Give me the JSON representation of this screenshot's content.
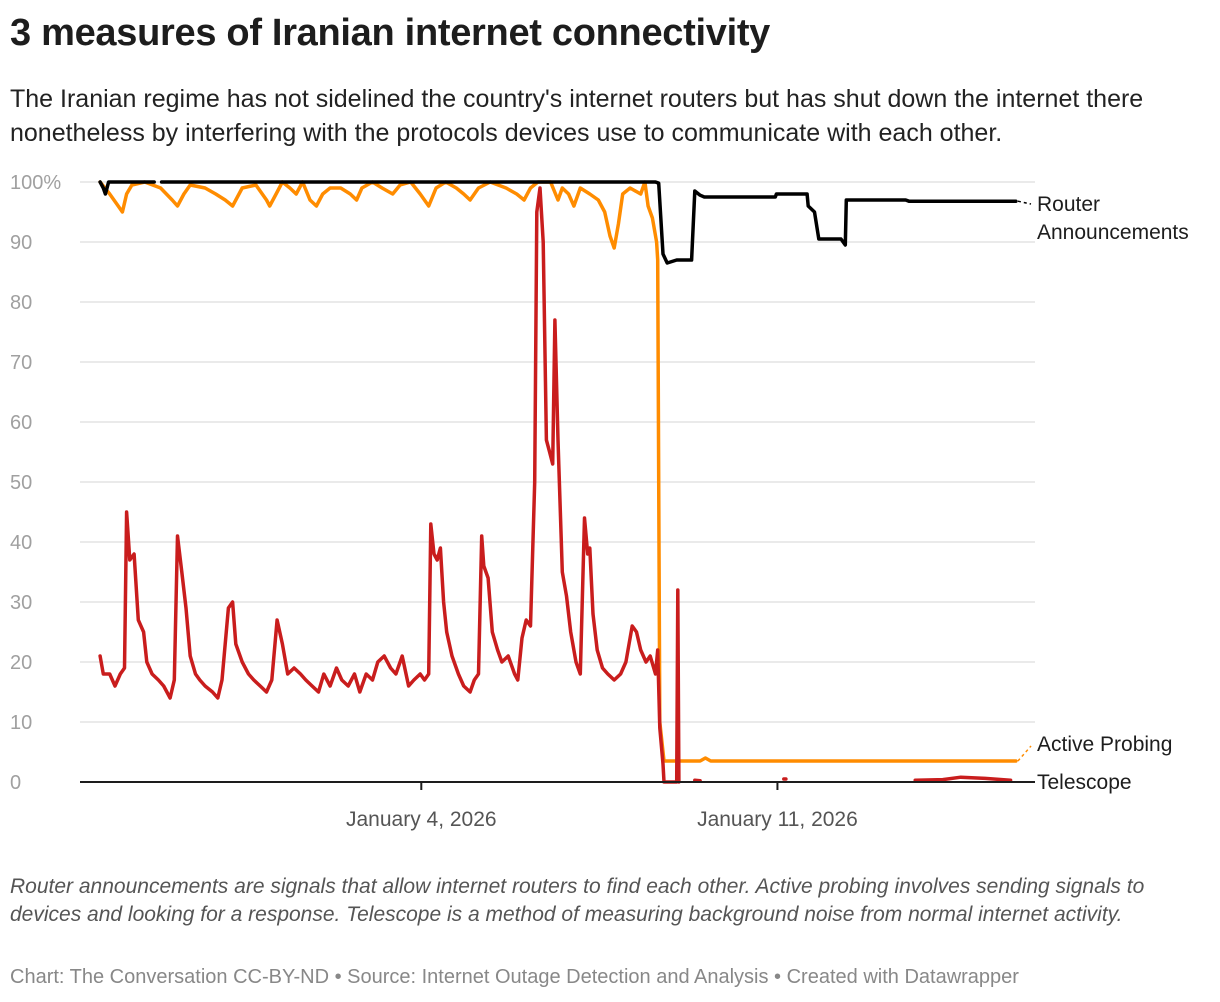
{
  "title": "3 measures of Iranian internet connectivity",
  "subtitle": "The Iranian regime has not sidelined the country's internet routers but has shut down the internet there nonetheless by interfering with the protocols devices use to communicate with each other.",
  "notes": "Router announcements are signals that allow internet routers to find each other. Active probing involves sending signals to devices and looking for a response. Telescope is a method of measuring background noise from normal internet activity.",
  "footer": "Chart: The Conversation CC-BY-ND • Source: Internet Outage Detection and Analysis • Created with Datawrapper",
  "chart_data": {
    "type": "line",
    "xlim": [
      "2025-12-28T07:00",
      "2026-01-16T01:30"
    ],
    "ylim": [
      0,
      100
    ],
    "grid": true,
    "y_ticks": [
      "0",
      "10",
      "20",
      "30",
      "40",
      "50",
      "60",
      "70",
      "80",
      "90",
      "100%"
    ],
    "x_ticks": [
      {
        "date": "2026-01-04T00:00",
        "label": "January 4, 2026"
      },
      {
        "date": "2026-01-11T00:00",
        "label": "January 11, 2026"
      }
    ],
    "legend_placement": "direct labels at right end of lines",
    "series": [
      {
        "name": "Router Announcements",
        "label_lines": [
          "Router",
          "Announcements"
        ],
        "color": "#000000",
        "points": [
          [
            "2025-12-28T16:30",
            100
          ],
          [
            "2025-12-28T18:00",
            99
          ],
          [
            "2025-12-28T19:00",
            98
          ],
          [
            "2025-12-28T20:30",
            100
          ],
          [
            "2025-12-29T18:00",
            100
          ],
          [
            "2025-12-29T19:30",
            null
          ],
          [
            "2025-12-29T21:30",
            100
          ],
          [
            "2026-01-08T14:30",
            100
          ],
          [
            "2026-01-08T16:00",
            99.8
          ],
          [
            "2026-01-08T18:00",
            88
          ],
          [
            "2026-01-08T20:00",
            86.5
          ],
          [
            "2026-01-09T00:30",
            87
          ],
          [
            "2026-01-09T07:30",
            87
          ],
          [
            "2026-01-09T09:00",
            98.5
          ],
          [
            "2026-01-09T11:30",
            97.8
          ],
          [
            "2026-01-09T13:30",
            97.5
          ],
          [
            "2026-01-10T23:00",
            97.5
          ],
          [
            "2026-01-10T23:30",
            98
          ],
          [
            "2026-01-11T14:00",
            98
          ],
          [
            "2026-01-11T14:30",
            96
          ],
          [
            "2026-01-11T17:30",
            95
          ],
          [
            "2026-01-11T19:30",
            90.5
          ],
          [
            "2026-01-12T06:00",
            90.5
          ],
          [
            "2026-01-12T08:00",
            89.5
          ],
          [
            "2026-01-12T08:30",
            97
          ],
          [
            "2026-01-12T10:30",
            97
          ],
          [
            "2026-01-13T12:30",
            97
          ],
          [
            "2026-01-13T14:00",
            96.8
          ],
          [
            "2026-01-15T16:30",
            96.8
          ]
        ]
      },
      {
        "name": "Active Probing",
        "label_lines": [
          "Active Probing"
        ],
        "color": "#ff8c00",
        "points": [
          [
            "2025-12-28T16:30",
            100
          ],
          [
            "2025-12-28T21:00",
            98
          ],
          [
            "2025-12-29T01:00",
            96
          ],
          [
            "2025-12-29T03:00",
            95
          ],
          [
            "2025-12-29T05:00",
            98
          ],
          [
            "2025-12-29T07:30",
            99.5
          ],
          [
            "2025-12-29T13:30",
            100
          ],
          [
            "2025-12-29T21:00",
            99
          ],
          [
            "2025-12-30T02:30",
            97
          ],
          [
            "2025-12-30T05:00",
            96
          ],
          [
            "2025-12-30T08:00",
            98
          ],
          [
            "2025-12-30T11:00",
            99.5
          ],
          [
            "2025-12-30T18:00",
            99
          ],
          [
            "2025-12-30T23:00",
            98
          ],
          [
            "2025-12-31T03:30",
            97
          ],
          [
            "2025-12-31T07:00",
            96
          ],
          [
            "2025-12-31T11:30",
            99
          ],
          [
            "2025-12-31T18:00",
            99.5
          ],
          [
            "2025-12-31T23:00",
            97
          ],
          [
            "2026-01-01T00:30",
            96
          ],
          [
            "2026-01-01T03:30",
            98
          ],
          [
            "2026-01-01T06:30",
            100
          ],
          [
            "2026-01-01T10:00",
            99
          ],
          [
            "2026-01-01T13:00",
            98
          ],
          [
            "2026-01-01T16:00",
            100
          ],
          [
            "2026-01-01T19:30",
            97
          ],
          [
            "2026-01-01T22:30",
            96
          ],
          [
            "2026-01-02T01:30",
            98
          ],
          [
            "2026-01-02T05:00",
            99
          ],
          [
            "2026-01-02T10:00",
            99
          ],
          [
            "2026-01-02T14:30",
            98
          ],
          [
            "2026-01-02T17:30",
            97
          ],
          [
            "2026-01-02T20:00",
            99
          ],
          [
            "2026-01-03T01:00",
            100
          ],
          [
            "2026-01-03T05:30",
            99
          ],
          [
            "2026-01-03T10:30",
            98
          ],
          [
            "2026-01-03T14:00",
            99.5
          ],
          [
            "2026-01-03T19:00",
            100
          ],
          [
            "2026-01-03T23:30",
            98
          ],
          [
            "2026-01-04T03:30",
            96
          ],
          [
            "2026-01-04T07:00",
            99
          ],
          [
            "2026-01-04T11:30",
            100
          ],
          [
            "2026-01-04T16:30",
            99
          ],
          [
            "2026-01-04T20:00",
            98
          ],
          [
            "2026-01-04T23:00",
            97
          ],
          [
            "2026-01-05T03:00",
            99
          ],
          [
            "2026-01-05T08:30",
            100
          ],
          [
            "2026-01-05T16:00",
            99
          ],
          [
            "2026-01-05T21:00",
            98
          ],
          [
            "2026-01-06T00:30",
            97
          ],
          [
            "2026-01-06T03:30",
            99
          ],
          [
            "2026-01-06T07:00",
            100
          ],
          [
            "2026-01-06T13:00",
            100
          ],
          [
            "2026-01-06T16:30",
            97
          ],
          [
            "2026-01-06T18:30",
            99
          ],
          [
            "2026-01-06T21:30",
            98
          ],
          [
            "2026-01-07T00:00",
            96
          ],
          [
            "2026-01-07T03:00",
            99
          ],
          [
            "2026-01-07T07:30",
            98
          ],
          [
            "2026-01-07T11:30",
            97
          ],
          [
            "2026-01-07T14:30",
            95
          ],
          [
            "2026-01-07T17:00",
            91
          ],
          [
            "2026-01-07T19:00",
            89
          ],
          [
            "2026-01-07T21:00",
            93
          ],
          [
            "2026-01-07T23:00",
            98
          ],
          [
            "2026-01-08T02:30",
            99
          ],
          [
            "2026-01-08T07:30",
            98
          ],
          [
            "2026-01-08T09:30",
            100
          ],
          [
            "2026-01-08T11:00",
            96
          ],
          [
            "2026-01-08T13:00",
            94
          ],
          [
            "2026-01-08T15:00",
            90
          ],
          [
            "2026-01-08T15:30",
            87
          ],
          [
            "2026-01-08T16:30",
            10
          ],
          [
            "2026-01-08T18:30",
            3.5
          ],
          [
            "2026-01-09T11:30",
            3.5
          ],
          [
            "2026-01-09T14:00",
            4
          ],
          [
            "2026-01-09T16:30",
            3.5
          ],
          [
            "2026-01-11T11:00",
            3.5
          ],
          [
            "2026-01-15T16:30",
            3.5
          ]
        ]
      },
      {
        "name": "Telescope",
        "label_lines": [
          "Telescope"
        ],
        "color": "#c91d1d",
        "points": [
          [
            "2025-12-28T16:30",
            21
          ],
          [
            "2025-12-28T18:00",
            18
          ],
          [
            "2025-12-28T21:00",
            18
          ],
          [
            "2025-12-28T23:30",
            16
          ],
          [
            "2025-12-29T02:00",
            18
          ],
          [
            "2025-12-29T04:00",
            19
          ],
          [
            "2025-12-29T05:00",
            45
          ],
          [
            "2025-12-29T06:30",
            37
          ],
          [
            "2025-12-29T08:30",
            38
          ],
          [
            "2025-12-29T10:30",
            27
          ],
          [
            "2025-12-29T13:00",
            25
          ],
          [
            "2025-12-29T14:30",
            20
          ],
          [
            "2025-12-29T17:00",
            18
          ],
          [
            "2025-12-29T20:00",
            17
          ],
          [
            "2025-12-29T22:30",
            16
          ],
          [
            "2025-12-30T01:30",
            14
          ],
          [
            "2025-12-30T03:30",
            17
          ],
          [
            "2025-12-30T05:00",
            41
          ],
          [
            "2025-12-30T07:00",
            35
          ],
          [
            "2025-12-30T09:00",
            29
          ],
          [
            "2025-12-30T11:00",
            21
          ],
          [
            "2025-12-30T13:30",
            18
          ],
          [
            "2025-12-30T15:30",
            17
          ],
          [
            "2025-12-30T18:00",
            16
          ],
          [
            "2025-12-30T21:30",
            15
          ],
          [
            "2025-12-31T00:00",
            14
          ],
          [
            "2025-12-31T02:00",
            17
          ],
          [
            "2025-12-31T05:00",
            29
          ],
          [
            "2025-12-31T07:00",
            30
          ],
          [
            "2025-12-31T08:30",
            23
          ],
          [
            "2025-12-31T11:30",
            20
          ],
          [
            "2025-12-31T14:30",
            18
          ],
          [
            "2025-12-31T17:00",
            17
          ],
          [
            "2025-12-31T20:00",
            16
          ],
          [
            "2025-12-31T23:00",
            15
          ],
          [
            "2026-01-01T01:30",
            17
          ],
          [
            "2026-01-01T04:00",
            27
          ],
          [
            "2026-01-01T06:30",
            23
          ],
          [
            "2026-01-01T09:00",
            18
          ],
          [
            "2026-01-01T12:00",
            19
          ],
          [
            "2026-01-01T15:00",
            18
          ],
          [
            "2026-01-01T17:30",
            17
          ],
          [
            "2026-01-01T20:30",
            16
          ],
          [
            "2026-01-01T23:30",
            15
          ],
          [
            "2026-01-02T02:00",
            18
          ],
          [
            "2026-01-02T05:00",
            16
          ],
          [
            "2026-01-02T08:00",
            19
          ],
          [
            "2026-01-02T10:30",
            17
          ],
          [
            "2026-01-02T13:30",
            16
          ],
          [
            "2026-01-02T16:30",
            18
          ],
          [
            "2026-01-02T19:00",
            15
          ],
          [
            "2026-01-02T22:00",
            18
          ],
          [
            "2026-01-03T01:00",
            17
          ],
          [
            "2026-01-03T03:30",
            20
          ],
          [
            "2026-01-03T06:30",
            21
          ],
          [
            "2026-01-03T09:30",
            19
          ],
          [
            "2026-01-03T12:00",
            18
          ],
          [
            "2026-01-03T15:00",
            21
          ],
          [
            "2026-01-03T18:00",
            16
          ],
          [
            "2026-01-03T20:30",
            17
          ],
          [
            "2026-01-03T23:30",
            18
          ],
          [
            "2026-01-04T01:30",
            17
          ],
          [
            "2026-01-04T03:30",
            18
          ],
          [
            "2026-01-04T04:30",
            43
          ],
          [
            "2026-01-04T06:00",
            38
          ],
          [
            "2026-01-04T07:30",
            37
          ],
          [
            "2026-01-04T09:00",
            39
          ],
          [
            "2026-01-04T10:30",
            30
          ],
          [
            "2026-01-04T12:00",
            25
          ],
          [
            "2026-01-04T14:30",
            21
          ],
          [
            "2026-01-04T17:30",
            18
          ],
          [
            "2026-01-04T20:00",
            16
          ],
          [
            "2026-01-04T23:00",
            15
          ],
          [
            "2026-01-05T01:00",
            17
          ],
          [
            "2026-01-05T03:00",
            18
          ],
          [
            "2026-01-05T04:30",
            41
          ],
          [
            "2026-01-05T05:30",
            36
          ],
          [
            "2026-01-05T07:30",
            34
          ],
          [
            "2026-01-05T09:30",
            25
          ],
          [
            "2026-01-05T12:00",
            22
          ],
          [
            "2026-01-05T14:00",
            20
          ],
          [
            "2026-01-05T17:00",
            21
          ],
          [
            "2026-01-05T20:00",
            18
          ],
          [
            "2026-01-05T21:30",
            17
          ],
          [
            "2026-01-05T23:30",
            24
          ],
          [
            "2026-01-06T01:30",
            27
          ],
          [
            "2026-01-06T03:30",
            26
          ],
          [
            "2026-01-06T05:30",
            50
          ],
          [
            "2026-01-06T06:30",
            95
          ],
          [
            "2026-01-06T08:00",
            99
          ],
          [
            "2026-01-06T09:30",
            90
          ],
          [
            "2026-01-06T11:00",
            57
          ],
          [
            "2026-01-06T12:30",
            55
          ],
          [
            "2026-01-06T14:00",
            53
          ],
          [
            "2026-01-06T15:00",
            77
          ],
          [
            "2026-01-06T16:30",
            57
          ],
          [
            "2026-01-06T18:30",
            35
          ],
          [
            "2026-01-06T20:30",
            31
          ],
          [
            "2026-01-06T22:30",
            25
          ],
          [
            "2026-01-07T01:00",
            20
          ],
          [
            "2026-01-07T03:00",
            18
          ],
          [
            "2026-01-07T05:00",
            44
          ],
          [
            "2026-01-07T06:30",
            38
          ],
          [
            "2026-01-07T07:30",
            39
          ],
          [
            "2026-01-07T09:00",
            28
          ],
          [
            "2026-01-07T11:00",
            22
          ],
          [
            "2026-01-07T13:30",
            19
          ],
          [
            "2026-01-07T16:00",
            18
          ],
          [
            "2026-01-07T19:00",
            17
          ],
          [
            "2026-01-07T22:00",
            18
          ],
          [
            "2026-01-08T00:30",
            20
          ],
          [
            "2026-01-08T03:30",
            26
          ],
          [
            "2026-01-08T05:30",
            25
          ],
          [
            "2026-01-08T07:30",
            22
          ],
          [
            "2026-01-08T10:00",
            20
          ],
          [
            "2026-01-08T12:00",
            21
          ],
          [
            "2026-01-08T14:30",
            18
          ],
          [
            "2026-01-08T15:30",
            22
          ],
          [
            "2026-01-08T16:30",
            9
          ],
          [
            "2026-01-08T18:00",
            3
          ],
          [
            "2026-01-08T18:30",
            0
          ],
          [
            "2026-01-09T00:30",
            0
          ],
          [
            "2026-01-09T01:00",
            32
          ],
          [
            "2026-01-09T01:30",
            0
          ],
          [
            "2026-01-09T02:00",
            null
          ],
          [
            "2026-01-09T09:00",
            0.3
          ],
          [
            "2026-01-09T11:30",
            0.2
          ],
          [
            "2026-01-09T12:00",
            null
          ],
          [
            "2026-01-11T03:00",
            0.5
          ],
          [
            "2026-01-11T04:00",
            0.5
          ],
          [
            "2026-01-11T05:00",
            null
          ],
          [
            "2026-01-13T17:00",
            0.3
          ],
          [
            "2026-01-14T06:00",
            0.4
          ],
          [
            "2026-01-14T14:30",
            0.8
          ],
          [
            "2026-01-15T02:00",
            0.6
          ],
          [
            "2026-01-15T14:00",
            0.3
          ]
        ]
      }
    ]
  }
}
